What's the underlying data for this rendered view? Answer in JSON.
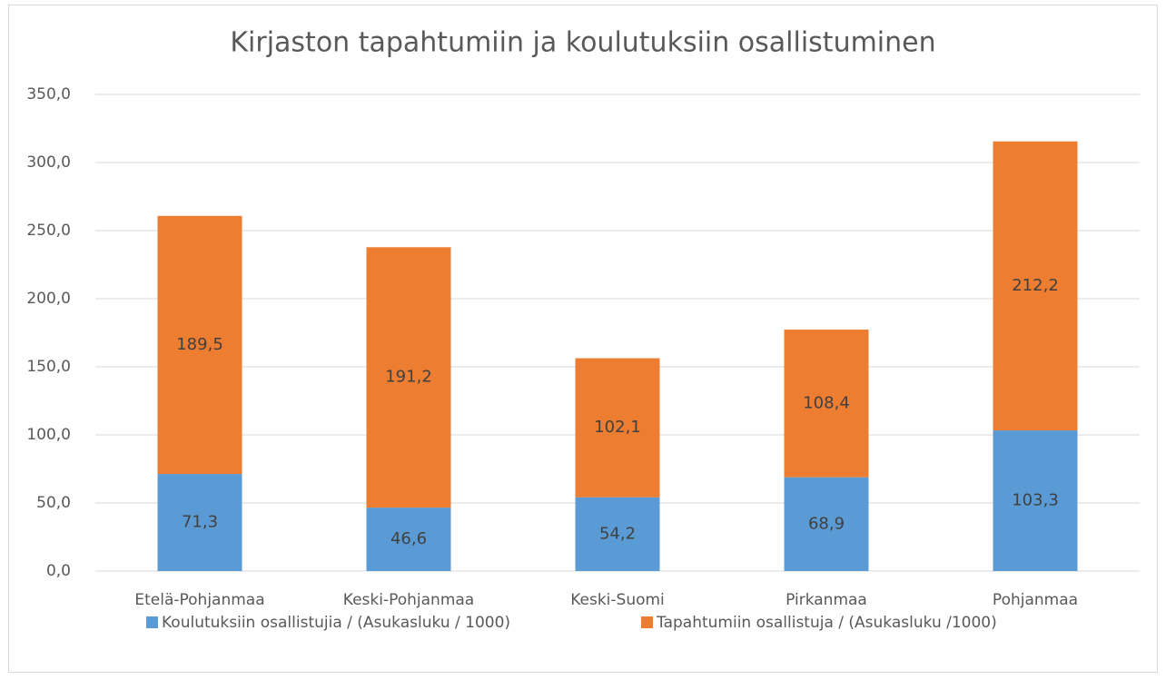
{
  "chart_data": {
    "type": "stacked_bar",
    "title": "Kirjaston tapahtumiin ja koulutuksiin osallistuminen",
    "categories": [
      "Etelä-Pohjanmaa",
      "Keski-Pohjanmaa",
      "Keski-Suomi",
      "Pirkanmaa",
      "Pohjanmaa"
    ],
    "series": [
      {
        "name": "Koulutuksiin osallistujia / (Asukasluku / 1000)",
        "color": "#5b9bd5",
        "values": [
          71.3,
          46.6,
          54.2,
          68.9,
          103.3
        ],
        "value_labels": [
          "71,3",
          "46,6",
          "54,2",
          "68,9",
          "103,3"
        ]
      },
      {
        "name": "Tapahtumiin osallistuja / (Asukasluku /1000)",
        "color": "#ed7d31",
        "values": [
          189.5,
          191.2,
          102.1,
          108.4,
          212.2
        ],
        "value_labels": [
          "189,5",
          "191,2",
          "102,1",
          "108,4",
          "212,2"
        ]
      }
    ],
    "ylim": [
      0,
      350
    ],
    "yticks": [
      {
        "value": 0,
        "label": "0,0"
      },
      {
        "value": 50,
        "label": "50,0"
      },
      {
        "value": 100,
        "label": "100,0"
      },
      {
        "value": 150,
        "label": "150,0"
      },
      {
        "value": 200,
        "label": "200,0"
      },
      {
        "value": 250,
        "label": "250,0"
      },
      {
        "value": 300,
        "label": "300,0"
      },
      {
        "value": 350,
        "label": "350,0"
      }
    ],
    "grid": true,
    "legend": "bottom"
  }
}
